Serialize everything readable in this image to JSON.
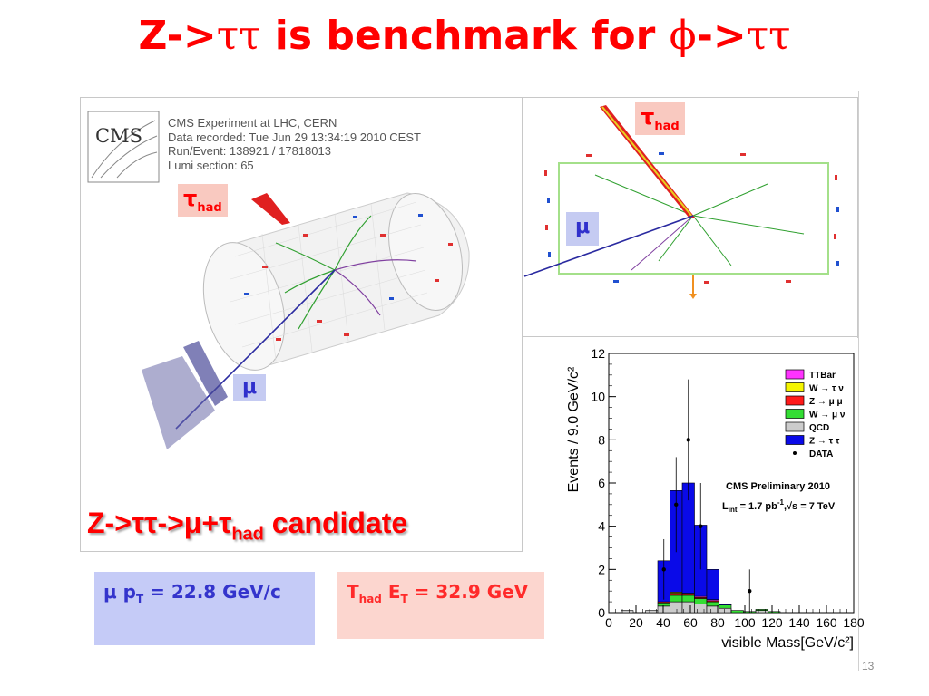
{
  "slide": {
    "title_part1": "Z->",
    "title_greek1": "ττ",
    "title_part2": " is benchmark for ",
    "title_greek2": "ϕ",
    "title_part3": "->",
    "title_greek3": "ττ",
    "page_number": "13"
  },
  "event_display": {
    "logo_text": "CMS",
    "info_lines": [
      "CMS Experiment at LHC, CERN",
      "Data recorded: Tue Jun 29 13:34:19 2010 CEST",
      "Run/Event: 138921 / 17818013",
      "Lumi section: 65"
    ],
    "tau_label": "τ",
    "tau_sub": "had",
    "mu_label": "μ",
    "candidate_main": "Z->ττ->μ+τ",
    "candidate_sub": "had",
    "candidate_tail": " candidate"
  },
  "side_view": {
    "tau_label": "τ",
    "tau_sub": "had",
    "mu_label": "μ"
  },
  "info_boxes": {
    "mu_text": "μ p",
    "mu_sub": "T",
    "mu_value": " = 22.8 GeV/c",
    "tau_text": "T",
    "tau_sub1": "had",
    "tau_mid": " E",
    "tau_sub2": "T",
    "tau_value": " = 32.9 GeV"
  },
  "chart_data": {
    "type": "bar",
    "stacked": true,
    "xlabel": "visible Mass[GeV/c²]",
    "ylabel": "Events / 9.0 GeV/c²",
    "xlim": [
      0,
      180
    ],
    "ylim": [
      0,
      12
    ],
    "x_ticks": [
      "0",
      "20",
      "40",
      "60",
      "80",
      "100",
      "120",
      "140",
      "160",
      "180"
    ],
    "y_ticks": [
      "0",
      "2",
      "4",
      "6",
      "8",
      "10",
      "12"
    ],
    "bin_edges": [
      0,
      9,
      18,
      27,
      36,
      45,
      54,
      63,
      72,
      81,
      90,
      99,
      108,
      117,
      126,
      135,
      144,
      153,
      162,
      171,
      180
    ],
    "series": [
      {
        "name": "QCD",
        "color": "#cccccc",
        "values": [
          0,
          0.1,
          0,
          0.1,
          0.3,
          0.5,
          0.5,
          0.4,
          0.3,
          0.2,
          0,
          0,
          0.1,
          0,
          0,
          0,
          0,
          0,
          0,
          0
        ]
      },
      {
        "name": "W → μ ν",
        "color": "#33dd33",
        "values": [
          0,
          0,
          0,
          0,
          0.15,
          0.3,
          0.3,
          0.25,
          0.2,
          0.15,
          0.1,
          0.05,
          0.05,
          0.05,
          0,
          0,
          0,
          0,
          0,
          0
        ]
      },
      {
        "name": "Z → μ μ",
        "color": "#ff1a1a",
        "values": [
          0,
          0,
          0,
          0,
          0.05,
          0.1,
          0.05,
          0.05,
          0.05,
          0,
          0,
          0,
          0,
          0,
          0,
          0,
          0,
          0,
          0,
          0
        ]
      },
      {
        "name": "W → τ ν",
        "color": "#f5f500",
        "values": [
          0,
          0,
          0,
          0,
          0,
          0.05,
          0.05,
          0,
          0,
          0,
          0,
          0,
          0,
          0,
          0,
          0,
          0,
          0,
          0,
          0
        ]
      },
      {
        "name": "TTBar",
        "color": "#ff33ff",
        "values": [
          0,
          0,
          0,
          0,
          0,
          0,
          0,
          0.05,
          0.05,
          0,
          0,
          0,
          0,
          0,
          0,
          0,
          0,
          0,
          0,
          0
        ]
      },
      {
        "name": "Z → τ τ",
        "color": "#0a0ae8",
        "values": [
          0,
          0,
          0,
          0,
          1.9,
          4.7,
          5.1,
          3.3,
          1.4,
          0.05,
          0,
          0,
          0,
          0,
          0,
          0,
          0,
          0,
          0,
          0
        ]
      }
    ],
    "data_points": {
      "name": "DATA",
      "x": [
        40.5,
        49.5,
        58.5,
        67.5,
        103.5
      ],
      "y": [
        2,
        5,
        8,
        4,
        1
      ],
      "err": [
        1.4,
        2.2,
        2.8,
        2.0,
        1.0
      ]
    },
    "legend": {
      "position": "top-right",
      "entries": [
        "TTBar",
        "W → τ ν",
        "Z → μ μ",
        "W → μ ν",
        "QCD",
        "Z → τ τ",
        "DATA"
      ]
    },
    "annotation_title": "CMS Preliminary 2010",
    "annotation_lumi": "L",
    "annotation_lumi_sub": "int",
    "annotation_lumi_rest": " = 1.7 pb",
    "annotation_lumi_sup": "-1",
    "annotation_energy": ",√s = 7 TeV"
  }
}
